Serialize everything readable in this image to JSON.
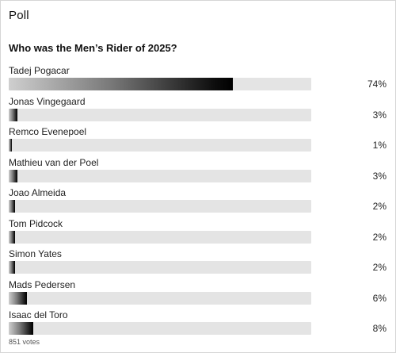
{
  "poll": {
    "header": "Poll",
    "question": "Who was the Men’s Rider of 2025?",
    "votes_text": "851 votes",
    "colors": {
      "track": "#e4e4e4",
      "fill_start": "#cfcfcf",
      "fill_end": "#000000"
    },
    "options": [
      {
        "name": "Tadej Pogacar",
        "percent_text": "74%",
        "value": 74
      },
      {
        "name": "Jonas Vingegaard",
        "percent_text": "3%",
        "value": 3
      },
      {
        "name": "Remco Evenepoel",
        "percent_text": "1%",
        "value": 1
      },
      {
        "name": "Mathieu van der Poel",
        "percent_text": "3%",
        "value": 3
      },
      {
        "name": "Joao Almeida",
        "percent_text": "2%",
        "value": 2
      },
      {
        "name": "Tom Pidcock",
        "percent_text": "2%",
        "value": 2
      },
      {
        "name": "Simon Yates",
        "percent_text": "2%",
        "value": 2
      },
      {
        "name": "Mads Pedersen",
        "percent_text": "6%",
        "value": 6
      },
      {
        "name": "Isaac del Toro",
        "percent_text": "8%",
        "value": 8
      }
    ]
  }
}
